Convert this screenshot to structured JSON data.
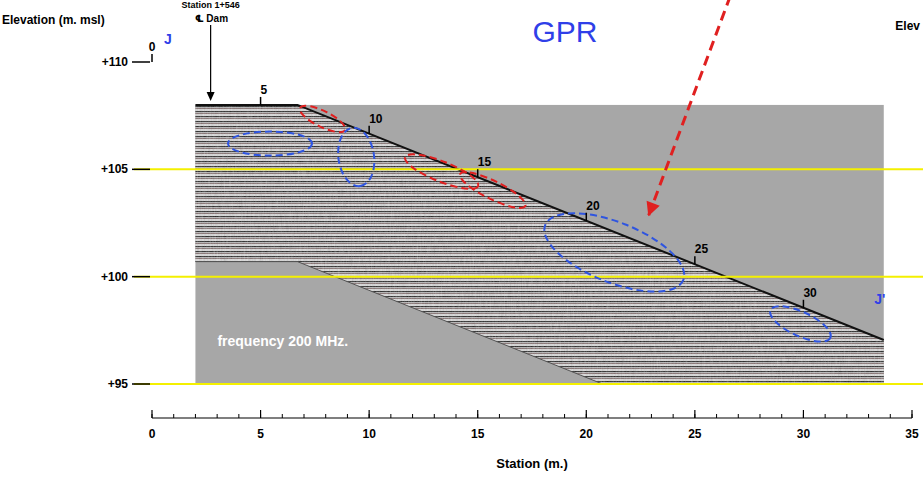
{
  "chart_data": {
    "type": "gpr_section",
    "title": "GPR",
    "x_label": "Station (m.)",
    "y_label": "Elevation (m. msl)",
    "xlim": [
      0,
      35
    ],
    "xticks": [
      0,
      5,
      10,
      15,
      20,
      25,
      30,
      35
    ],
    "ylim": [
      95,
      110
    ],
    "yticks": [
      {
        "value": 95,
        "label": "+95"
      },
      {
        "value": 100,
        "label": "+100"
      },
      {
        "value": 105,
        "label": "+105"
      },
      {
        "value": 110,
        "label": "+110"
      }
    ],
    "grid": true,
    "section_start": "J",
    "section_end": "J'",
    "station_label": "Station 1+546",
    "centerline_label": "℄ Dam",
    "centerline_x": 2.7,
    "frequency_label": "frequency  200  MHz.",
    "edge_label": "Elev",
    "surface": {
      "x": [
        2,
        6.7,
        33.7
      ],
      "y": [
        108,
        108,
        97.05
      ]
    },
    "penetration_limit": {
      "x": [
        2,
        6.7,
        20.75
      ],
      "y": [
        100.7,
        100.7,
        95
      ]
    },
    "surface_ticks": [
      0,
      5,
      10,
      15,
      20,
      25,
      30
    ],
    "anomalies": [
      {
        "color": "#2f55e0",
        "x": [
          3.5,
          7.37
        ],
        "y": [
          106.2,
          106.2
        ],
        "half_width": 0.56
      },
      {
        "color": "#e02020",
        "x": [
          6.82,
          8.89
        ],
        "y": [
          107.86,
          106.83
        ],
        "half_width": 0.37
      },
      {
        "color": "#2f55e0",
        "x": [
          9.22,
          9.59
        ],
        "y": [
          106.93,
          104.22
        ],
        "half_width": 0.83
      },
      {
        "color": "#e02020",
        "x": [
          11.66,
          15.02
        ],
        "y": [
          105.57,
          104.22
        ],
        "half_width": 0.47
      },
      {
        "color": "#e02020",
        "x": [
          14.19,
          17.19
        ],
        "y": [
          104.78,
          103.29
        ],
        "half_width": 0.42
      },
      {
        "color": "#2f55e0",
        "x": [
          18.11,
          24.47
        ],
        "y": [
          102.41,
          99.85
        ],
        "half_width": 1.4
      },
      {
        "color": "#2f55e0",
        "x": [
          28.48,
          31.24
        ],
        "y": [
          98.45,
          97.15
        ],
        "half_width": 0.56
      }
    ]
  }
}
